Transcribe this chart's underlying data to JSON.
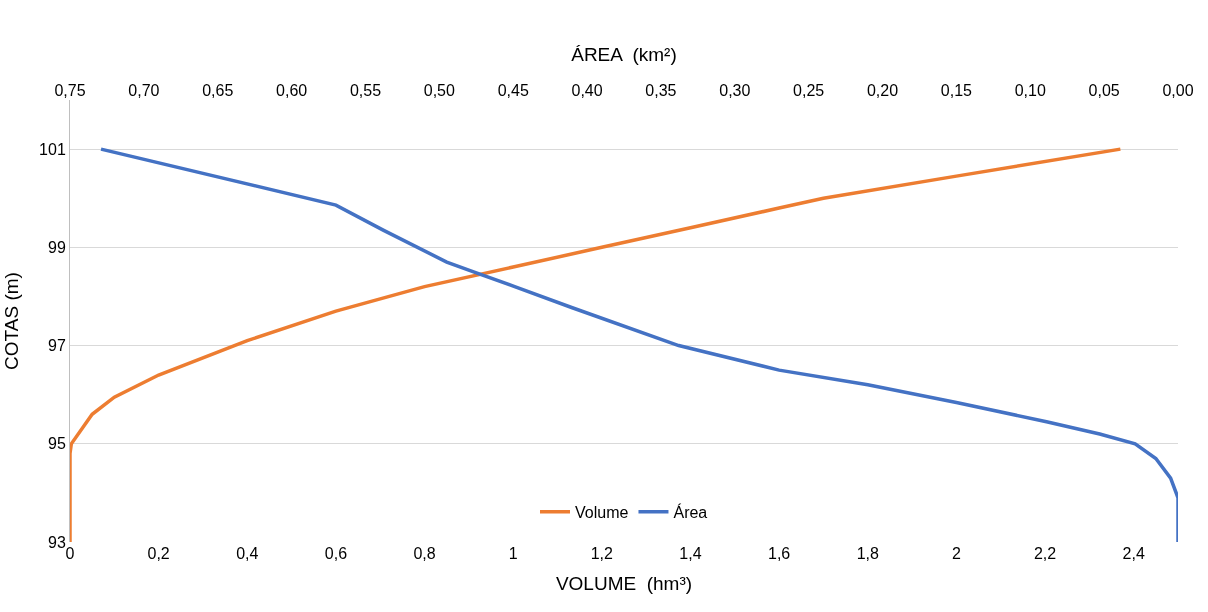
{
  "chart_data": {
    "type": "line",
    "xlabel": "VOLUME  (hm³)",
    "x2label": "ÁREA  (km²)",
    "ylabel": "COTAS (m)",
    "xlim": [
      0,
      2.5
    ],
    "xticks": [
      0,
      {
        "value": 0.2,
        "label": "0,2"
      },
      {
        "value": 0.4,
        "label": "0,4"
      },
      {
        "value": 0.6,
        "label": "0,6"
      },
      {
        "value": 0.8,
        "label": "0,8"
      },
      1,
      {
        "value": 1.2,
        "label": "1,2"
      },
      {
        "value": 1.4,
        "label": "1,4"
      },
      {
        "value": 1.6,
        "label": "1,6"
      },
      {
        "value": 1.8,
        "label": "1,8"
      },
      2,
      {
        "value": 2.2,
        "label": "2,2"
      },
      {
        "value": 2.4,
        "label": "2,4"
      }
    ],
    "x2lim": [
      0.75,
      0
    ],
    "x2ticks": [
      {
        "value": 0.75,
        "label": "0,75"
      },
      {
        "value": 0.7,
        "label": "0,70"
      },
      {
        "value": 0.65,
        "label": "0,65"
      },
      {
        "value": 0.6,
        "label": "0,60"
      },
      {
        "value": 0.55,
        "label": "0,55"
      },
      {
        "value": 0.5,
        "label": "0,50"
      },
      {
        "value": 0.45,
        "label": "0,45"
      },
      {
        "value": 0.4,
        "label": "0,40"
      },
      {
        "value": 0.35,
        "label": "0,35"
      },
      {
        "value": 0.3,
        "label": "0,30"
      },
      {
        "value": 0.25,
        "label": "0,25"
      },
      {
        "value": 0.2,
        "label": "0,20"
      },
      {
        "value": 0.15,
        "label": "0,15"
      },
      {
        "value": 0.1,
        "label": "0,10"
      },
      {
        "value": 0.05,
        "label": "0,05"
      },
      {
        "value": 0,
        "label": "0,00"
      }
    ],
    "ylim": [
      93,
      102
    ],
    "yticks": [
      93,
      95,
      97,
      99,
      101
    ],
    "grid": "y",
    "legend": "bottom",
    "marker": "none",
    "line_style": "solid",
    "series": [
      {
        "name": "Volume",
        "color": "#ed7d31",
        "x": [
          0,
          0,
          0.003,
          0.05,
          0.1,
          0.2,
          0.4,
          0.6,
          0.8,
          1.0,
          1.2,
          1.4,
          1.6,
          1.7,
          2.0,
          2.37
        ],
        "values": [
          93,
          94.8,
          95,
          95.6,
          95.95,
          96.4,
          97.1,
          97.7,
          98.2,
          98.6,
          99.0,
          99.4,
          99.8,
          100.0,
          100.45,
          101
        ]
      },
      {
        "name": "Área",
        "color": "#4472c4",
        "axis": "x2",
        "x": [
          0.729,
          0.57,
          0.538,
          0.495,
          0.474,
          0.449,
          0.41,
          0.338,
          0.27,
          0.21,
          0.15,
          0.089,
          0.053,
          0.029,
          0.015,
          0.005,
          0.0,
          0.0
        ],
        "values": [
          101,
          99.86,
          99.35,
          98.7,
          98.47,
          98.2,
          97.77,
          97.0,
          96.5,
          96.2,
          95.84,
          95.45,
          95.2,
          95.0,
          94.7,
          94.3,
          93.9,
          93
        ]
      }
    ]
  }
}
